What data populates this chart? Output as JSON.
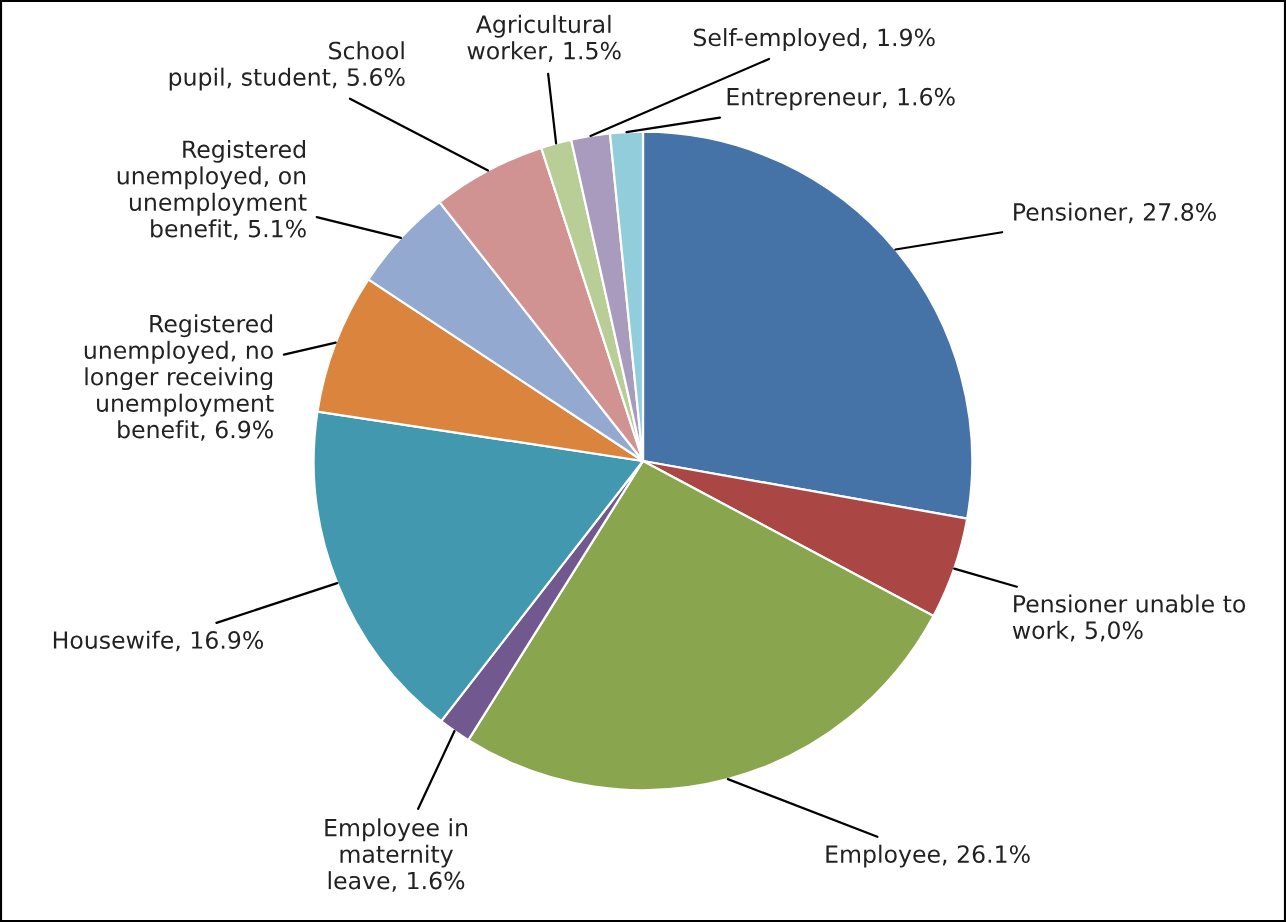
{
  "chart_data": {
    "type": "pie",
    "categories": [
      "Pensioner",
      "Pensioner unable to\nwork",
      "Employee",
      "Employee in\nmaternity\nleave",
      "Housewife",
      "Registered\nunemployed, no\nlonger receiving\nunemployment\nbenefit",
      "Registered\nunemployed, on\nunemployment\nbenefit",
      "School\npupil, student",
      "Agricultural\nworker",
      "Self-employed",
      "Entrepreneur"
    ],
    "values": [
      27.8,
      5.0,
      26.1,
      1.6,
      16.9,
      6.9,
      5.1,
      5.6,
      1.5,
      1.9,
      1.6
    ],
    "value_labels": [
      "27.8%",
      "5,0%",
      "26.1%",
      "1.6%",
      "16.9%",
      "6.9%",
      "5.1%",
      "5.6%",
      "1.5%",
      "1.9%",
      "1.6%"
    ],
    "colors": [
      "#4572a7",
      "#aa4643",
      "#89a54e",
      "#71588f",
      "#4198af",
      "#db843d",
      "#93a9cf",
      "#d19392",
      "#b9cd96",
      "#a99bbd",
      "#92cddc"
    ],
    "legend": false
  }
}
